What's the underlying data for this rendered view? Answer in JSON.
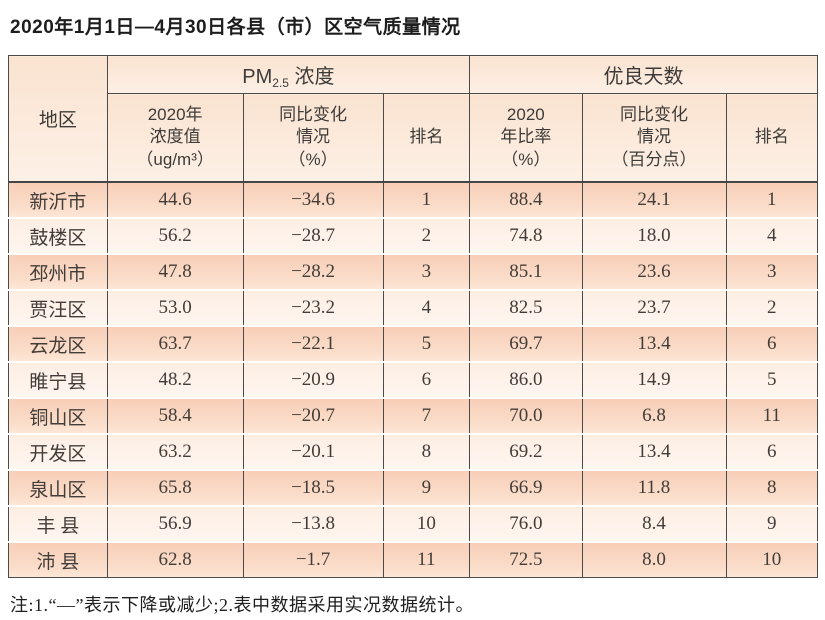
{
  "title": "2020年1月1日—4月30日各县（市）区空气质量情况",
  "colors": {
    "row_stripe_dark": "#f8d2bc",
    "row_stripe_light": "#fdf1e8",
    "header_background": "#fbe6d6",
    "table_border": "#4a4a4a",
    "text": "#3d3b39"
  },
  "table": {
    "region_header": "地区",
    "groups": {
      "pm25": {
        "prefix": "PM",
        "sub": "2.5",
        "suffix": " 浓度"
      },
      "good_days": "优良天数"
    },
    "headers": {
      "concentration": [
        "2020年",
        "浓度值",
        "（ug/m³）"
      ],
      "pm_change": [
        "同比变化",
        "情况",
        "（%）"
      ],
      "pm_rank": "排名",
      "ratio": [
        "2020",
        "年比率",
        "（%）"
      ],
      "days_change": [
        "同比变化",
        "情况",
        "（百分点）"
      ],
      "days_rank": "排名"
    },
    "rows": [
      [
        "新沂市",
        "44.6",
        "−34.6",
        "1",
        "88.4",
        "24.1",
        "1"
      ],
      [
        "鼓楼区",
        "56.2",
        "−28.7",
        "2",
        "74.8",
        "18.0",
        "4"
      ],
      [
        "邳州市",
        "47.8",
        "−28.2",
        "3",
        "85.1",
        "23.6",
        "3"
      ],
      [
        "贾汪区",
        "53.0",
        "−23.2",
        "4",
        "82.5",
        "23.7",
        "2"
      ],
      [
        "云龙区",
        "63.7",
        "−22.1",
        "5",
        "69.7",
        "13.4",
        "6"
      ],
      [
        "睢宁县",
        "48.2",
        "−20.9",
        "6",
        "86.0",
        "14.9",
        "5"
      ],
      [
        "铜山区",
        "58.4",
        "−20.7",
        "7",
        "70.0",
        "6.8",
        "11"
      ],
      [
        "开发区",
        "63.2",
        "−20.1",
        "8",
        "69.2",
        "13.4",
        "6"
      ],
      [
        "泉山区",
        "65.8",
        "−18.5",
        "9",
        "66.9",
        "11.8",
        "8"
      ],
      [
        "丰 县",
        "56.9",
        "−13.8",
        "10",
        "76.0",
        "8.4",
        "9"
      ],
      [
        "沛 县",
        "62.8",
        "−1.7",
        "11",
        "72.5",
        "8.0",
        "10"
      ]
    ]
  },
  "footnote": "注:1.“—”表示下降或减少;2.表中数据采用实况数据统计。"
}
